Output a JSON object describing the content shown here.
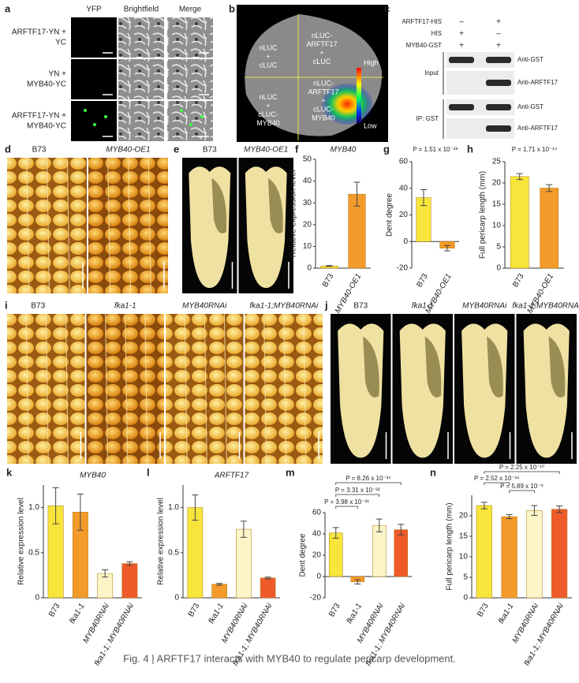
{
  "panels": {
    "a": {
      "label": "a",
      "columns": [
        "YFP",
        "Brightfield",
        "Merge"
      ],
      "rows": [
        [
          "ARFTF17-YN +",
          "YC"
        ],
        [
          "YN +",
          "MYB40-YC"
        ],
        [
          "ARFTF17-YN +",
          "MYB40-YC"
        ]
      ]
    },
    "b": {
      "label": "b",
      "quadrants": [
        [
          "nLUC",
          "+",
          "cLUC"
        ],
        [
          "nLUC-",
          "ARFTF17",
          "+",
          "cLUC"
        ],
        [
          "nLUC",
          "+",
          "cLUC-",
          "MYB40"
        ],
        [
          "nLUC-",
          "ARFTF17",
          "+",
          "cLUC-",
          "MYB40"
        ]
      ],
      "scale": [
        "High",
        "Low"
      ]
    },
    "c": {
      "label": "c",
      "conditions": [
        {
          "name": "ARFTF17-HIS",
          "lanes": [
            "–",
            "+"
          ]
        },
        {
          "name": "HIS",
          "lanes": [
            "+",
            "–"
          ]
        },
        {
          "name": "MYB40-GST",
          "lanes": [
            "+",
            "+"
          ]
        }
      ],
      "sections": [
        {
          "name": "Input",
          "blots": [
            "Anti-GST",
            "Anti-ARFTF17"
          ]
        },
        {
          "name": "IP: GST",
          "blots": [
            "Anti-GST",
            "Anti-ARFTF17"
          ]
        }
      ]
    },
    "d": {
      "label": "d",
      "samples": [
        "B73",
        "MYB40-OE1"
      ]
    },
    "e": {
      "label": "e",
      "samples": [
        "B73",
        "MYB40-OE1"
      ]
    },
    "i": {
      "label": "i",
      "samples": [
        "B73",
        "fka1-1",
        "MYB40RNAi",
        "fka1-1;MYB40RNAi"
      ]
    },
    "j": {
      "label": "j",
      "samples": [
        "B73",
        "fka1-1",
        "MYB40RNAi",
        "fka1-1;MYB40RNAi"
      ]
    }
  },
  "chart_data": [
    {
      "type": "bar",
      "label": "f",
      "title": "MYB40",
      "y_label": "Relative expression level",
      "categories": [
        "B73",
        "MYB40-OE1"
      ],
      "values": [
        1,
        34
      ],
      "errors": [
        0.2,
        5.5
      ],
      "colors": [
        "#f7e53b",
        "#f39b2a"
      ],
      "ylim": [
        0,
        50
      ],
      "yticks": [
        0,
        10,
        20,
        30,
        40,
        50
      ]
    },
    {
      "type": "bar",
      "label": "g",
      "y_label": "Dent degree",
      "categories": [
        "B73",
        "MYB40-OE1"
      ],
      "values": [
        33,
        -5
      ],
      "errors": [
        6,
        2
      ],
      "colors": [
        "#f7e53b",
        "#f39b2a"
      ],
      "ylim": [
        -20,
        60
      ],
      "yticks": [
        -20,
        0,
        20,
        40,
        60
      ],
      "annotations": [
        "P = 1.51 x 10⁻²⁸"
      ]
    },
    {
      "type": "bar",
      "label": "h",
      "y_label": "Full pericarp length (mm)",
      "categories": [
        "B73",
        "MYB40-OE1"
      ],
      "values": [
        21.5,
        18.8
      ],
      "errors": [
        0.7,
        0.8
      ],
      "colors": [
        "#f7e53b",
        "#f39b2a"
      ],
      "ylim": [
        0,
        25
      ],
      "yticks": [
        0,
        5,
        10,
        15,
        20,
        25
      ],
      "annotations": [
        "P = 1.71 x 10⁻¹⁴"
      ]
    },
    {
      "type": "bar",
      "label": "k",
      "title": "MYB40",
      "y_label": "Relative expression level",
      "categories": [
        "B73",
        "fka1-1",
        "MYB40RNAi",
        "fka1-1; MYB40RNAi"
      ],
      "values": [
        1.02,
        0.95,
        0.27,
        0.38
      ],
      "errors": [
        0.2,
        0.2,
        0.04,
        0.02
      ],
      "colors": [
        "#f7e53b",
        "#f39b2a",
        "#fbf5c8",
        "#ef5a2a"
      ],
      "ylim": [
        0,
        1.25
      ],
      "yticks": [
        0,
        0.5,
        {
          "value": 1,
          "label": "1.0"
        }
      ]
    },
    {
      "type": "bar",
      "label": "l",
      "title": "ARFTF17",
      "y_label": "Relative expression level",
      "categories": [
        "B73",
        "fka1-1",
        "MYB40RNAi",
        "fka1-1; MYB40RNAi"
      ],
      "values": [
        1.0,
        0.15,
        0.76,
        0.22
      ],
      "errors": [
        0.14,
        0.01,
        0.09,
        0.01
      ],
      "colors": [
        "#f7e53b",
        "#f39b2a",
        "#fbf5c8",
        "#ef5a2a"
      ],
      "ylim": [
        0,
        1.25
      ],
      "yticks": [
        0,
        0.5,
        {
          "value": 1,
          "label": "1.0"
        }
      ]
    },
    {
      "type": "bar",
      "label": "m",
      "y_label": "Dent degree",
      "categories": [
        "B73",
        "fka1-1",
        "MYB40RNAi",
        "fka1-1; MYB40RNAi"
      ],
      "values": [
        41,
        -5,
        48,
        44
      ],
      "errors": [
        5,
        2,
        6,
        5
      ],
      "colors": [
        "#f7e53b",
        "#f39b2a",
        "#fbf5c8",
        "#ef5a2a"
      ],
      "ylim": [
        -20,
        60
      ],
      "yticks": [
        -20,
        0,
        20,
        40,
        60
      ],
      "annotations": [
        "P = 3.98 x 10⁻³¹",
        "P = 3.31 x 10⁻³²",
        "P = 8.26 x 10⁻³⁴"
      ]
    },
    {
      "type": "bar",
      "label": "n",
      "y_label": "Full pericarp length (mm)",
      "categories": [
        "B73",
        "fka1-1",
        "MYB40RNAi",
        "fka1-1; MYB40RNAi"
      ],
      "values": [
        22.5,
        19.8,
        21.3,
        21.6
      ],
      "errors": [
        0.8,
        0.5,
        1.2,
        0.8
      ],
      "colors": [
        "#f7e53b",
        "#f39b2a",
        "#fbf5c8",
        "#ef5a2a"
      ],
      "ylim": [
        0,
        25
      ],
      "yticks": [
        0,
        5,
        10,
        15,
        20
      ],
      "annotations": [
        "P = 2.25 x 10⁻¹⁰",
        "P = 2.52 x 10⁻¹⁶",
        "P = 5.89 x 10⁻⁹"
      ]
    }
  ],
  "caption": "Fig. 4 | ARFTF17 interacts with MYB40 to regulate pericarp development."
}
